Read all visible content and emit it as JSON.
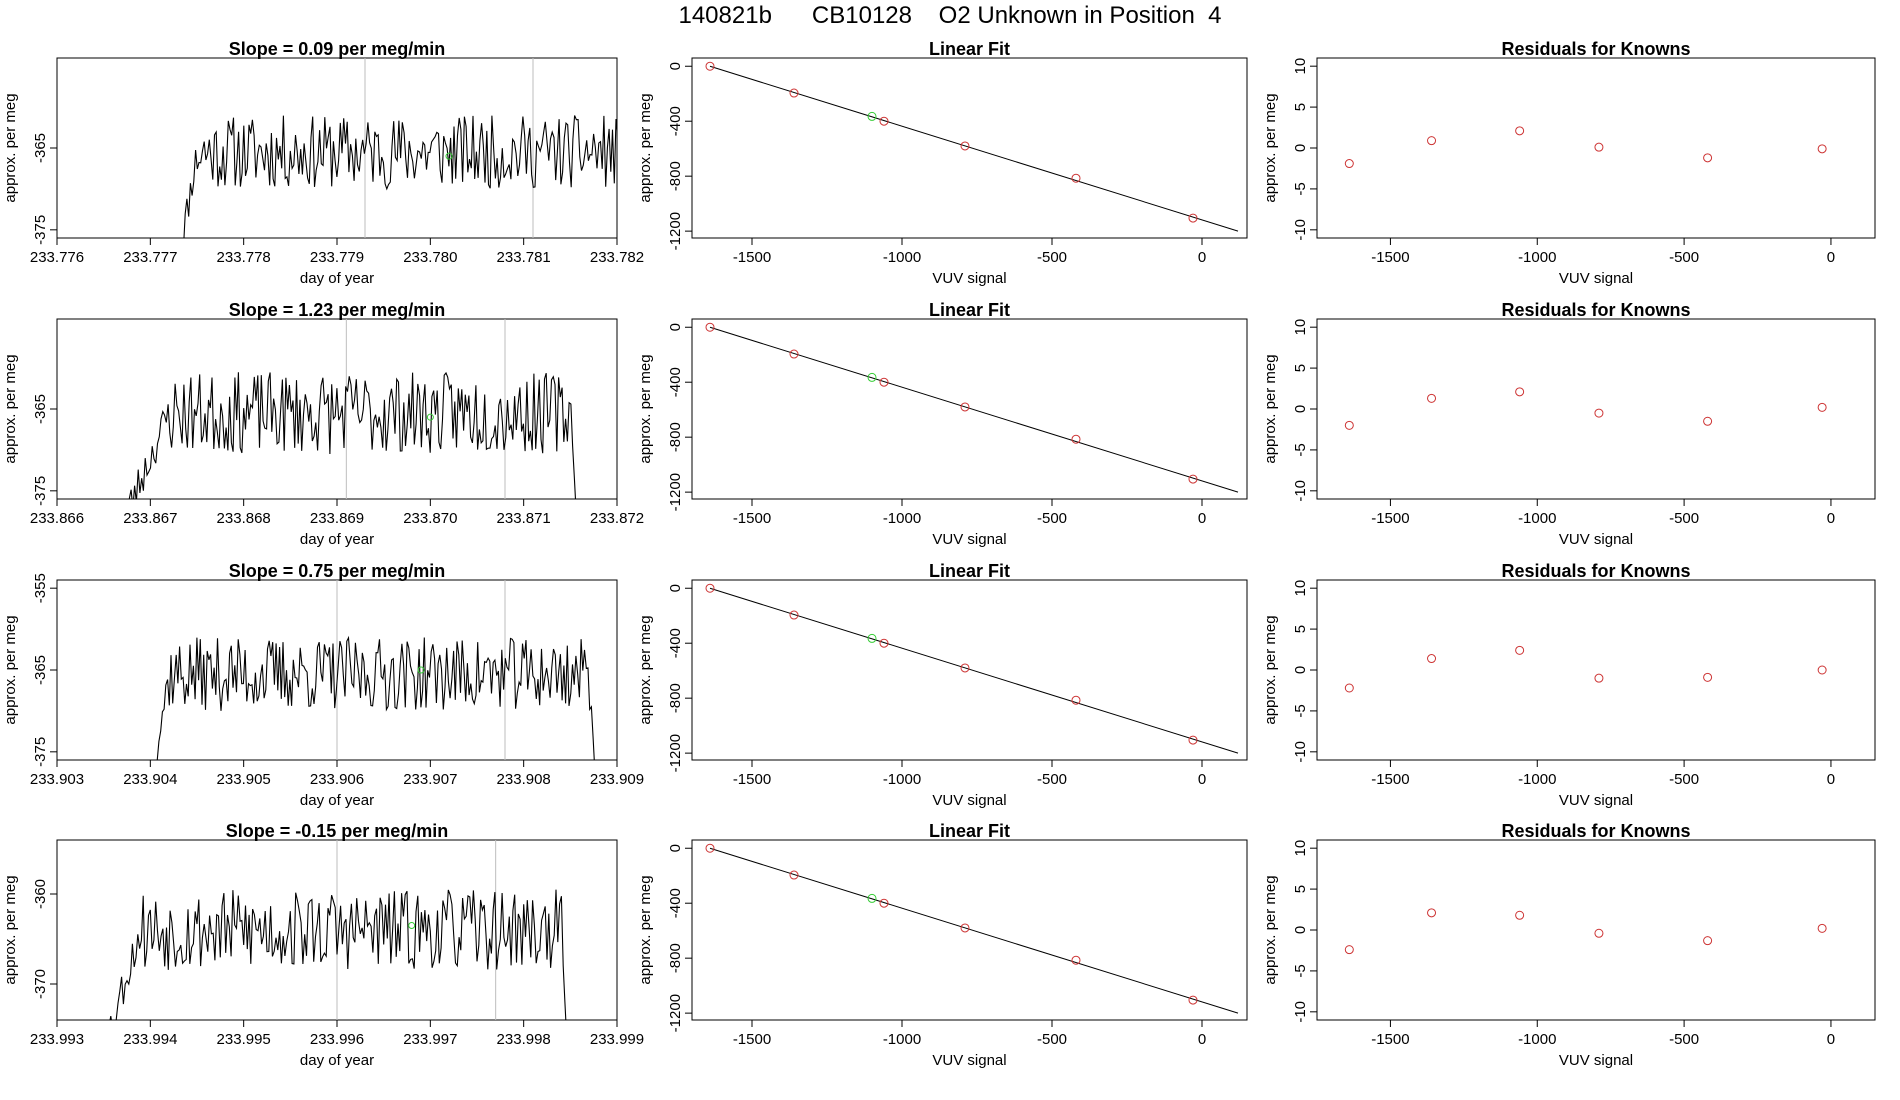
{
  "page": {
    "title": "140821b      CB10128    O2 Unknown in Position  4"
  },
  "colors": {
    "trace": "#000000",
    "known_point": "#CD3333",
    "unknown_point": "#33CC33",
    "marker_line": "#BEBEBE",
    "fit_line": "#000000"
  },
  "chart_data": [
    {
      "type": "line",
      "panel": "timeseries",
      "row": 1,
      "title": "Slope =  0.09  per meg/min",
      "xlabel": "day of year",
      "ylabel": "approx. per meg",
      "xlim": [
        233.776,
        233.782
      ],
      "ylim": [
        -376,
        -354
      ],
      "xticks": [
        "233.776",
        "233.777",
        "233.778",
        "233.779",
        "233.780",
        "233.781",
        "233.782"
      ],
      "yticks": [
        "-365",
        "-375"
      ],
      "trace_start": 233.7773,
      "trace_end": 233.7821,
      "plateau_start": 233.7775,
      "baseline": -365.5,
      "noise_amplitude": 4.5,
      "seed": 11,
      "marker_lines": [
        233.7793,
        233.7811
      ],
      "unknown_point": {
        "x": 233.7802,
        "y": -366
      }
    },
    {
      "type": "scatter",
      "panel": "linear_fit",
      "row": 1,
      "title": "Linear Fit",
      "xlabel": "VUV signal",
      "ylabel": "approx. per meg",
      "xlim": [
        -1700,
        150
      ],
      "ylim": [
        -1250,
        60
      ],
      "xticks": [
        "-1500",
        "-1000",
        "-500",
        "0"
      ],
      "yticks": [
        "0",
        "-400",
        "-800",
        "-1200"
      ],
      "known_points": {
        "x": [
          -1640,
          -1360,
          -1060,
          -790,
          -420,
          -30
        ],
        "y": [
          0,
          -195,
          -400,
          -580,
          -815,
          -1105
        ]
      },
      "unknown_point": {
        "x": -1100,
        "y": -365
      },
      "fit_line": {
        "x": [
          -1640,
          120
        ],
        "y": [
          0,
          -1200
        ]
      }
    },
    {
      "type": "scatter",
      "panel": "residuals",
      "row": 1,
      "title": "Residuals for Knowns",
      "xlabel": "VUV signal",
      "ylabel": "approx. per meg",
      "xlim": [
        -1750,
        150
      ],
      "ylim": [
        -11,
        11
      ],
      "xticks": [
        "-1500",
        "-1000",
        "-500",
        "0"
      ],
      "yticks": [
        "10",
        "5",
        "0",
        "-5",
        "-10"
      ],
      "points": {
        "x": [
          -1640,
          -1360,
          -1060,
          -790,
          -420,
          -30
        ],
        "y": [
          -1.9,
          0.9,
          2.1,
          0.1,
          -1.2,
          -0.1
        ]
      }
    },
    {
      "type": "line",
      "panel": "timeseries",
      "row": 2,
      "title": "Slope =  1.23  per meg/min",
      "xlabel": "day of year",
      "ylabel": "approx. per meg",
      "xlim": [
        233.866,
        233.872
      ],
      "ylim": [
        -376,
        -354
      ],
      "xticks": [
        "233.866",
        "233.867",
        "233.868",
        "233.869",
        "233.870",
        "233.871",
        "233.872"
      ],
      "yticks": [
        "-365",
        "-375"
      ],
      "trace_start": 233.8667,
      "trace_end": 233.8716,
      "plateau_start": 233.8672,
      "baseline": -365.5,
      "noise_amplitude": 5.0,
      "seed": 23,
      "marker_lines": [
        233.8691,
        233.8708
      ],
      "unknown_point": {
        "x": 233.87,
        "y": -366
      }
    },
    {
      "type": "scatter",
      "panel": "linear_fit",
      "row": 2,
      "title": "Linear Fit",
      "xlabel": "VUV signal",
      "ylabel": "approx. per meg",
      "xlim": [
        -1700,
        150
      ],
      "ylim": [
        -1250,
        60
      ],
      "xticks": [
        "-1500",
        "-1000",
        "-500",
        "0"
      ],
      "yticks": [
        "0",
        "-400",
        "-800",
        "-1200"
      ],
      "known_points": {
        "x": [
          -1640,
          -1360,
          -1060,
          -790,
          -420,
          -30
        ],
        "y": [
          0,
          -195,
          -400,
          -580,
          -815,
          -1105
        ]
      },
      "unknown_point": {
        "x": -1100,
        "y": -365
      },
      "fit_line": {
        "x": [
          -1640,
          120
        ],
        "y": [
          0,
          -1200
        ]
      }
    },
    {
      "type": "scatter",
      "panel": "residuals",
      "row": 2,
      "title": "Residuals for Knowns",
      "xlabel": "VUV signal",
      "ylabel": "approx. per meg",
      "xlim": [
        -1750,
        150
      ],
      "ylim": [
        -11,
        11
      ],
      "xticks": [
        "-1500",
        "-1000",
        "-500",
        "0"
      ],
      "yticks": [
        "10",
        "5",
        "0",
        "-5",
        "-10"
      ],
      "points": {
        "x": [
          -1640,
          -1360,
          -1060,
          -790,
          -420,
          -30
        ],
        "y": [
          -2.0,
          1.3,
          2.1,
          -0.5,
          -1.5,
          0.2
        ]
      }
    },
    {
      "type": "line",
      "panel": "timeseries",
      "row": 3,
      "title": "Slope =  0.75  per meg/min",
      "xlabel": "day of year",
      "ylabel": "approx. per meg",
      "xlim": [
        233.903,
        233.909
      ],
      "ylim": [
        -376,
        -354
      ],
      "xticks": [
        "233.903",
        "233.904",
        "233.905",
        "233.906",
        "233.907",
        "233.908",
        "233.909"
      ],
      "yticks": [
        "-355",
        "-365",
        "-375"
      ],
      "trace_start": 233.904,
      "trace_end": 233.9088,
      "plateau_start": 233.9042,
      "baseline": -365.5,
      "noise_amplitude": 4.5,
      "seed": 37,
      "marker_lines": [
        233.906,
        233.9078
      ],
      "unknown_point": {
        "x": 233.9069,
        "y": -365
      }
    },
    {
      "type": "scatter",
      "panel": "linear_fit",
      "row": 3,
      "title": "Linear Fit",
      "xlabel": "VUV signal",
      "ylabel": "approx. per meg",
      "xlim": [
        -1700,
        150
      ],
      "ylim": [
        -1250,
        60
      ],
      "xticks": [
        "-1500",
        "-1000",
        "-500",
        "0"
      ],
      "yticks": [
        "0",
        "-400",
        "-800",
        "-1200"
      ],
      "known_points": {
        "x": [
          -1640,
          -1360,
          -1060,
          -790,
          -420,
          -30
        ],
        "y": [
          0,
          -195,
          -400,
          -580,
          -815,
          -1105
        ]
      },
      "unknown_point": {
        "x": -1100,
        "y": -365
      },
      "fit_line": {
        "x": [
          -1640,
          120
        ],
        "y": [
          0,
          -1200
        ]
      }
    },
    {
      "type": "scatter",
      "panel": "residuals",
      "row": 3,
      "title": "Residuals for Knowns",
      "xlabel": "VUV signal",
      "ylabel": "approx. per meg",
      "xlim": [
        -1750,
        150
      ],
      "ylim": [
        -11,
        11
      ],
      "xticks": [
        "-1500",
        "-1000",
        "-500",
        "0"
      ],
      "yticks": [
        "10",
        "5",
        "0",
        "-5",
        "-10"
      ],
      "points": {
        "x": [
          -1640,
          -1360,
          -1060,
          -790,
          -420,
          -30
        ],
        "y": [
          -2.2,
          1.4,
          2.4,
          -1.0,
          -0.9,
          0.0
        ]
      }
    },
    {
      "type": "line",
      "panel": "timeseries",
      "row": 4,
      "title": "Slope =  -0.15  per meg/min",
      "xlabel": "day of year",
      "ylabel": "approx. per meg",
      "xlim": [
        233.993,
        233.999
      ],
      "ylim": [
        -374,
        -354
      ],
      "xticks": [
        "233.993",
        "233.994",
        "233.995",
        "233.996",
        "233.997",
        "233.998",
        "233.999"
      ],
      "yticks": [
        "-360",
        "-370"
      ],
      "trace_start": 233.9935,
      "trace_end": 233.9985,
      "plateau_start": 233.9939,
      "baseline": -364.0,
      "noise_amplitude": 4.5,
      "seed": 53,
      "marker_lines": [
        233.996,
        233.9977
      ],
      "unknown_point": {
        "x": 233.9968,
        "y": -363.5
      }
    },
    {
      "type": "scatter",
      "panel": "linear_fit",
      "row": 4,
      "title": "Linear Fit",
      "xlabel": "VUV signal",
      "ylabel": "approx. per meg",
      "xlim": [
        -1700,
        150
      ],
      "ylim": [
        -1250,
        60
      ],
      "xticks": [
        "-1500",
        "-1000",
        "-500",
        "0"
      ],
      "yticks": [
        "0",
        "-400",
        "-800",
        "-1200"
      ],
      "known_points": {
        "x": [
          -1640,
          -1360,
          -1060,
          -790,
          -420,
          -30
        ],
        "y": [
          0,
          -195,
          -400,
          -580,
          -815,
          -1105
        ]
      },
      "unknown_point": {
        "x": -1100,
        "y": -365
      },
      "fit_line": {
        "x": [
          -1640,
          120
        ],
        "y": [
          0,
          -1200
        ]
      }
    },
    {
      "type": "scatter",
      "panel": "residuals",
      "row": 4,
      "title": "Residuals for Knowns",
      "xlabel": "VUV signal",
      "ylabel": "approx. per meg",
      "xlim": [
        -1750,
        150
      ],
      "ylim": [
        -11,
        11
      ],
      "xticks": [
        "-1500",
        "-1000",
        "-500",
        "0"
      ],
      "yticks": [
        "10",
        "5",
        "0",
        "-5",
        "-10"
      ],
      "points": {
        "x": [
          -1640,
          -1360,
          -1060,
          -790,
          -420,
          -30
        ],
        "y": [
          -2.4,
          2.1,
          1.8,
          -0.4,
          -1.3,
          0.2
        ]
      }
    }
  ]
}
